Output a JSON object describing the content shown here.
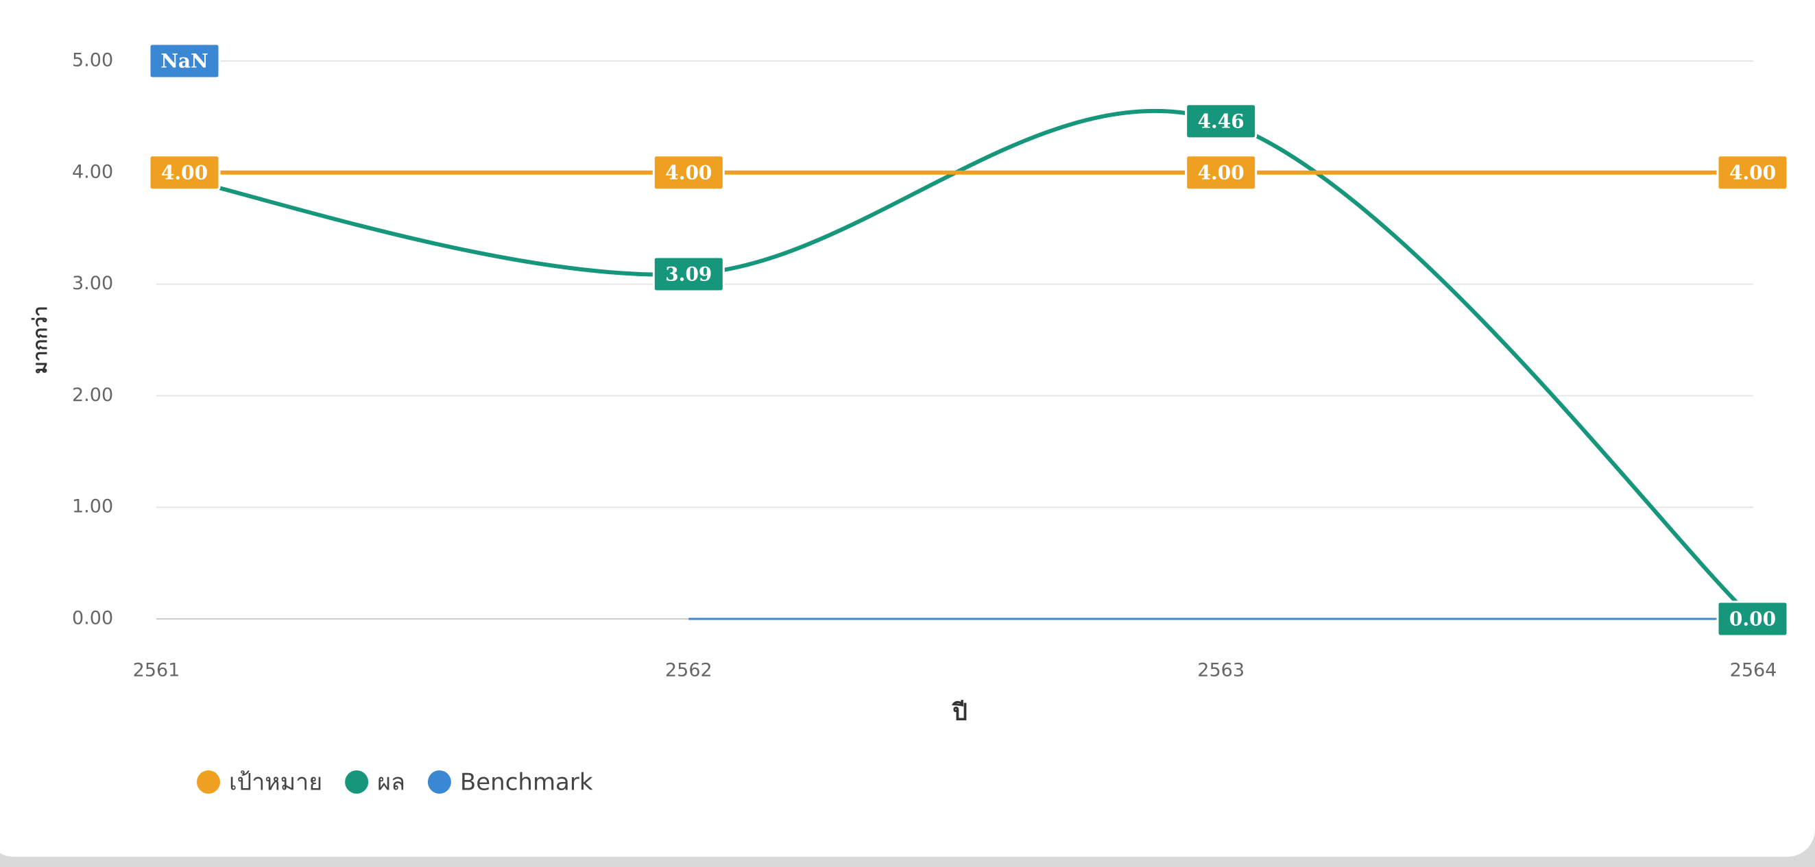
{
  "chart_data": {
    "type": "line",
    "categories": [
      "2561",
      "2562",
      "2563",
      "2564"
    ],
    "series": [
      {
        "name": "เป้าหมาย",
        "color": "#f0a020",
        "values": [
          4,
          4,
          4,
          4
        ],
        "value_labels": [
          "4.00",
          "4.00",
          "4.00",
          "4.00"
        ]
      },
      {
        "name": "ผล",
        "color": "#16967a",
        "values": [
          4,
          3.09,
          4.46,
          0
        ],
        "value_labels": [
          "4.00",
          "3.09",
          "4.46",
          "0.00"
        ]
      },
      {
        "name": "Benchmark",
        "color": "#3a87d4",
        "values": [
          null,
          0,
          0,
          0
        ],
        "value_labels": [
          "NaN",
          null,
          null,
          null
        ]
      }
    ],
    "ylim": [
      0,
      5
    ],
    "yticks": [
      {
        "value": 0,
        "label": "0.00"
      },
      {
        "value": 1,
        "label": "1.00"
      },
      {
        "value": 2,
        "label": "2.00"
      },
      {
        "value": 3,
        "label": "3.00"
      },
      {
        "value": 4,
        "label": "4.00"
      },
      {
        "value": 5,
        "label": "5.00"
      }
    ],
    "ylabel": "มากกว่า",
    "xlabel": "ปี",
    "grid": true,
    "legend": "bottom-left"
  }
}
